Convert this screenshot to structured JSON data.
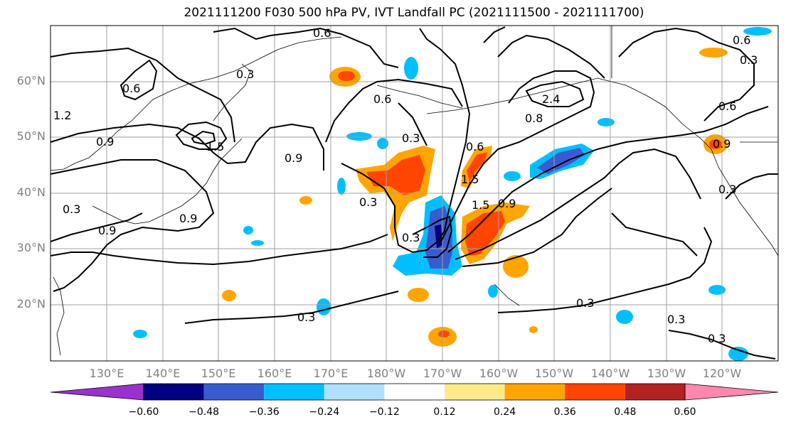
{
  "title": "2021111200 F030 500 hPa PV, IVT Landfall PC (2021111500 - 2021111700)",
  "lat_labels": [
    "60°N",
    "50°N",
    "40°N",
    "30°N",
    "20°N"
  ],
  "lon_labels": [
    "130°E",
    "140°E",
    "150°E",
    "160°E",
    "170°E",
    "180°W",
    "170°W",
    "160°W",
    "150°W",
    "140°W",
    "130°W",
    "120°W"
  ],
  "colorbar": {
    "colors": [
      "#9932cc",
      "#000080",
      "#3a5bd0",
      "#00bfff",
      "#b0e0ff",
      "#ffffff",
      "#ffea8a",
      "#ffa500",
      "#ff4500",
      "#b22222",
      "#ff88b0"
    ],
    "ticks": [
      "−0.60",
      "−0.48",
      "−0.36",
      "−0.24",
      "−0.12",
      "0.12",
      "0.24",
      "0.36",
      "0.48",
      "0.60"
    ]
  },
  "contour_labels": [
    "0.6",
    "0.3",
    "0.6",
    "1.2",
    "0.9",
    "1.5",
    "0.9",
    "0.3",
    "0.9",
    "0.9",
    "0.6",
    "0.3",
    "0.6",
    "1.5",
    "0.9",
    "1.5",
    "2.4",
    "0.8",
    "0.3",
    "0.3",
    "0.3",
    "0.3",
    "0.6",
    "0.9",
    "0.3",
    "0.6",
    "0.3",
    "0.3",
    "0.3"
  ]
}
